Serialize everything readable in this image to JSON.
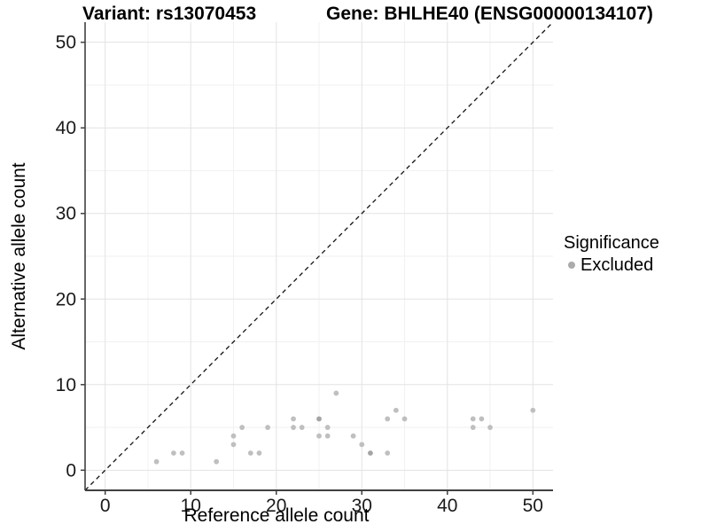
{
  "titles": {
    "variant": "Variant: rs13070453",
    "gene": "Gene: BHLHE40 (ENSG00000134107)"
  },
  "legend": {
    "title": "Significance",
    "items": [
      {
        "label": "Excluded",
        "color": "#ababab"
      }
    ]
  },
  "chart_data": {
    "type": "scatter",
    "title_left": "Variant: rs13070453",
    "title_right": "Gene: BHLHE40 (ENSG00000134107)",
    "xlabel": "Reference allele count",
    "ylabel": "Alternative allele count",
    "xlim": [
      -2.35,
      52.35
    ],
    "ylim": [
      -2.35,
      52.35
    ],
    "x_ticks": [
      0,
      10,
      20,
      30,
      40,
      50
    ],
    "y_ticks": [
      0,
      10,
      20,
      30,
      40,
      50
    ],
    "x_minor_ticks": [
      5,
      15,
      25,
      35,
      45
    ],
    "y_minor_ticks": [
      5,
      15,
      25,
      35,
      45
    ],
    "grid": true,
    "legend_position": "right",
    "identity_line": {
      "style": "dashed",
      "from": [
        -2.35,
        -2.35
      ],
      "to": [
        52.35,
        52.35
      ],
      "color": "#111111"
    },
    "series": [
      {
        "name": "Excluded",
        "color": "#bfbfbf",
        "overlap_color": "#a4a4a4",
        "points": [
          [
            6,
            1
          ],
          [
            8,
            2
          ],
          [
            9,
            2
          ],
          [
            13,
            1
          ],
          [
            15,
            3
          ],
          [
            15,
            4
          ],
          [
            16,
            5
          ],
          [
            17,
            2
          ],
          [
            18,
            2
          ],
          [
            19,
            5
          ],
          [
            22,
            5
          ],
          [
            22,
            6
          ],
          [
            23,
            5
          ],
          [
            25,
            4
          ],
          [
            25,
            6,
            2
          ],
          [
            26,
            4
          ],
          [
            26,
            5
          ],
          [
            27,
            9
          ],
          [
            29,
            4
          ],
          [
            30,
            3
          ],
          [
            31,
            2,
            2
          ],
          [
            33,
            2
          ],
          [
            33,
            6
          ],
          [
            34,
            7
          ],
          [
            35,
            6
          ],
          [
            43,
            5
          ],
          [
            43,
            6
          ],
          [
            44,
            6
          ],
          [
            45,
            5
          ],
          [
            50,
            7
          ]
        ]
      }
    ],
    "colors": {
      "grid_major": "#e3e3e3",
      "grid_minor": "#f1f1f1",
      "axis_line": "#404040",
      "tick_label": "#1a1a1a"
    }
  }
}
